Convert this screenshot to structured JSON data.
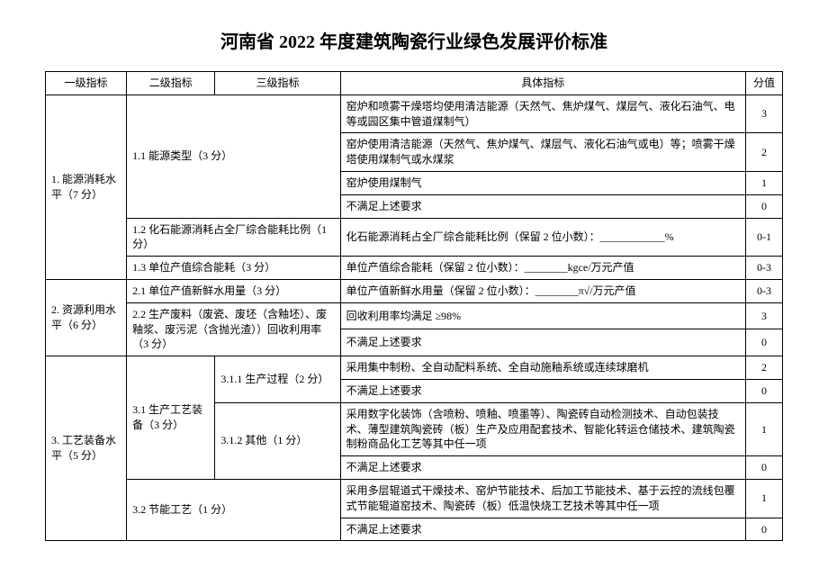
{
  "title": "河南省 2022 年度建筑陶瓷行业绿色发展评价标准",
  "headers": {
    "l1": "一级指标",
    "l2": "二级指标",
    "l3": "三级指标",
    "detail": "具体指标",
    "score": "分值"
  },
  "sec1": {
    "l1": "1. 能源消耗水平（7 分）",
    "s11": {
      "l2": "1.1 能源类型（3 分）",
      "r1": {
        "detail": "窑炉和喷雾干燥塔均使用清洁能源（天然气、焦炉煤气、煤层气、液化石油气、电等或园区集中管道煤制气）",
        "score": "3"
      },
      "r2": {
        "detail": "窑炉使用清洁能源（天然气、焦炉煤气、煤层气、液化石油气或电）等；喷雾干燥塔使用煤制气或水煤浆",
        "score": "2"
      },
      "r3": {
        "detail": "窑炉使用煤制气",
        "score": "1"
      },
      "r4": {
        "detail": "不满足上述要求",
        "score": "0"
      }
    },
    "s12": {
      "label": "1.2 化石能源消耗占全厂综合能耗比例（1 分）",
      "detail": "化石能源消耗占全厂综合能耗比例（保留 2 位小数）：____________%",
      "score": "0-1"
    },
    "s13": {
      "label": "1.3 单位产值综合能耗（3 分）",
      "detail": "单位产值综合能耗（保留 2 位小数）：________kgce/万元产值",
      "score": "0-3"
    }
  },
  "sec2": {
    "l1": "2. 资源利用水平（6 分）",
    "s21": {
      "label": "2.1 单位产值新鲜水用量（3 分）",
      "detail": "单位产值新鲜水用量（保留 2 位小数）：________π√/万元产值",
      "score": "0-3"
    },
    "s22": {
      "label": "2.2 生产废料（废瓷、废坯（含釉坯）、废釉浆、废污泥（含抛光渣））回收利用率（3 分）",
      "r1": {
        "detail": "回收利用率均满足 ≥98%",
        "score": "3"
      },
      "r2": {
        "detail": "不满足上述要求",
        "score": "0"
      }
    }
  },
  "sec3": {
    "l1": "3. 工艺装备水平（5 分）",
    "s31": {
      "l2": "3.1 生产工艺装备（3 分）",
      "s311": {
        "l3": "3.1.1 生产过程（2 分）",
        "r1": {
          "detail": "采用集中制粉、全自动配料系统、全自动施釉系统或连续球磨机",
          "score": "2"
        },
        "r2": {
          "detail": "不满足上述要求",
          "score": "0"
        }
      },
      "s312": {
        "l3": "3.1.2 其他（1 分）",
        "r1": {
          "detail": "采用数字化装饰（含喷粉、喷釉、喷墨等）、陶瓷砖自动检测技术、自动包装技术、薄型建筑陶瓷砖（板）生产及应用配套技术、智能化转运仓储技术、建筑陶瓷制粉商品化工艺等其中任一项",
          "score": "1"
        },
        "r2": {
          "detail": "不满足上述要求",
          "score": "0"
        }
      }
    },
    "s32": {
      "label": "3.2 节能工艺（1 分）",
      "r1": {
        "detail": "采用多层辊道式干燥技术、窑炉节能技术、后加工节能技术、基于云控的流线包覆式节能辊道窑技术、陶瓷砖（板）低温快烧工艺技术等其中任一项",
        "score": "1"
      },
      "r2": {
        "detail": "不满足上述要求",
        "score": "0"
      }
    }
  }
}
